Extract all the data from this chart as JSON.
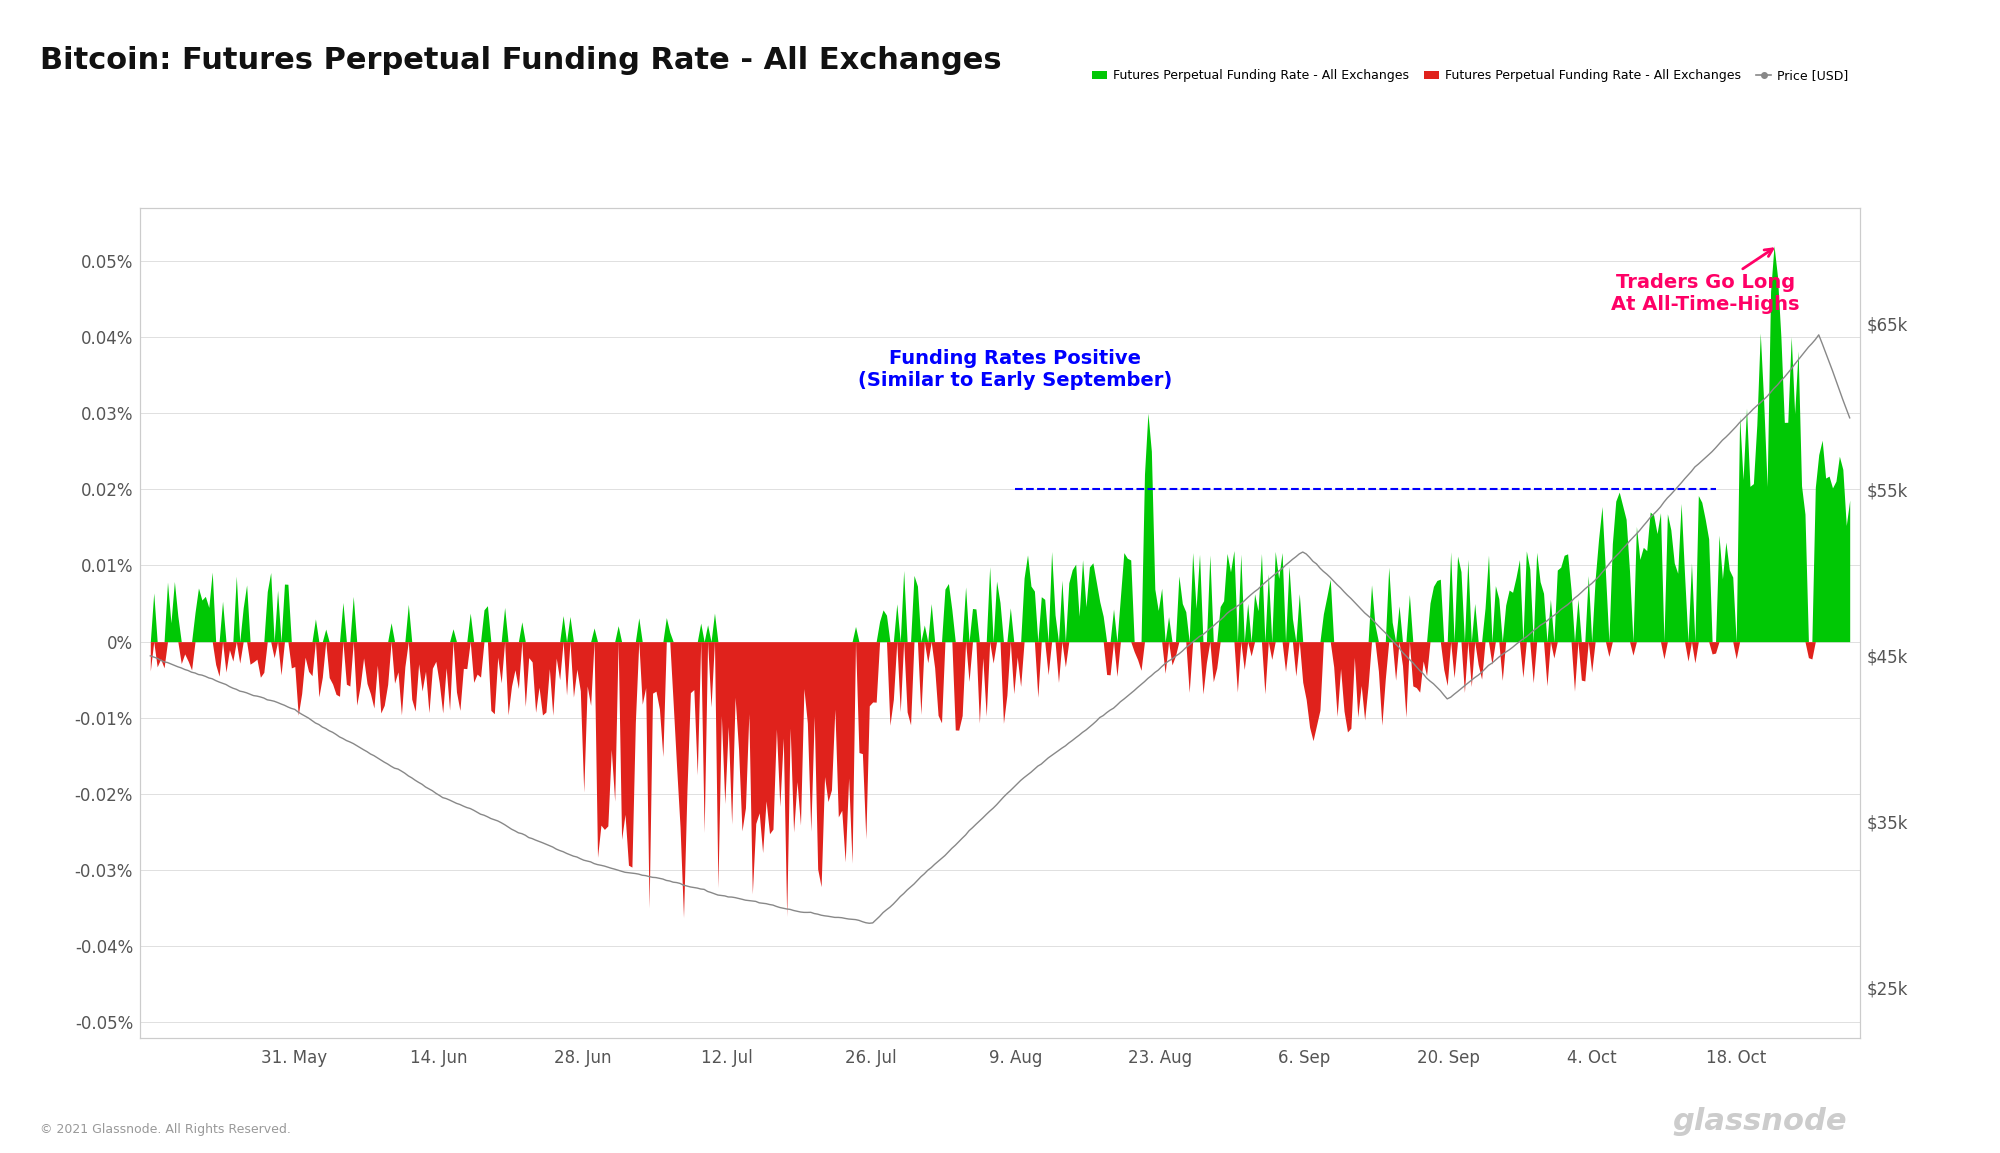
{
  "title": "Bitcoin: Futures Perpetual Funding Rate - All Exchanges",
  "title_fontsize": 22,
  "background_color": "#ffffff",
  "plot_bg_color": "#ffffff",
  "ylim_left": [
    -0.00052,
    0.00057
  ],
  "ylim_right": [
    22000,
    72000
  ],
  "yticks_left": [
    -0.0005,
    -0.0004,
    -0.0003,
    -0.0002,
    -0.0001,
    0.0,
    0.0001,
    0.0002,
    0.0003,
    0.0004,
    0.0005
  ],
  "ytick_labels_left": [
    "-0.05%",
    "-0.04%",
    "-0.03%",
    "-0.02%",
    "-0.01%",
    "0%",
    "0.01%",
    "0.02%",
    "0.03%",
    "0.04%",
    "0.05%"
  ],
  "ytick_labels_right": [
    "$25k",
    "$35k",
    "$45k",
    "$55k",
    "$65k"
  ],
  "yticks_right": [
    25000,
    35000,
    45000,
    55000,
    65000
  ],
  "xlabel_dates": [
    "31. May",
    "14. Jun",
    "28. Jun",
    "12. Jul",
    "26. Jul",
    "9. Aug",
    "23. Aug",
    "6. Sep",
    "20. Sep",
    "4. Oct",
    "18. Oct"
  ],
  "green_color": "#00c805",
  "red_color": "#e0221c",
  "price_color": "#888888",
  "annotation1_text": "Funding Rates Positive\n(Similar to Early September)",
  "annotation1_color": "#0000ff",
  "annotation2_text": "Traders Go Long\nAt All-Time-Highs",
  "annotation2_color": "#ff0066",
  "dashed_line_y": 0.0002,
  "dashed_line_color": "#0000ff",
  "copyright_text": "© 2021 Glassnode. All Rights Reserved.",
  "watermark_text": "glassnode",
  "legend_entries": [
    "Futures Perpetual Funding Rate - All Exchanges",
    "Futures Perpetual Funding Rate - All Exchanges",
    "Price [USD]"
  ],
  "legend_colors": [
    "#00c805",
    "#e0221c",
    "#888888"
  ]
}
